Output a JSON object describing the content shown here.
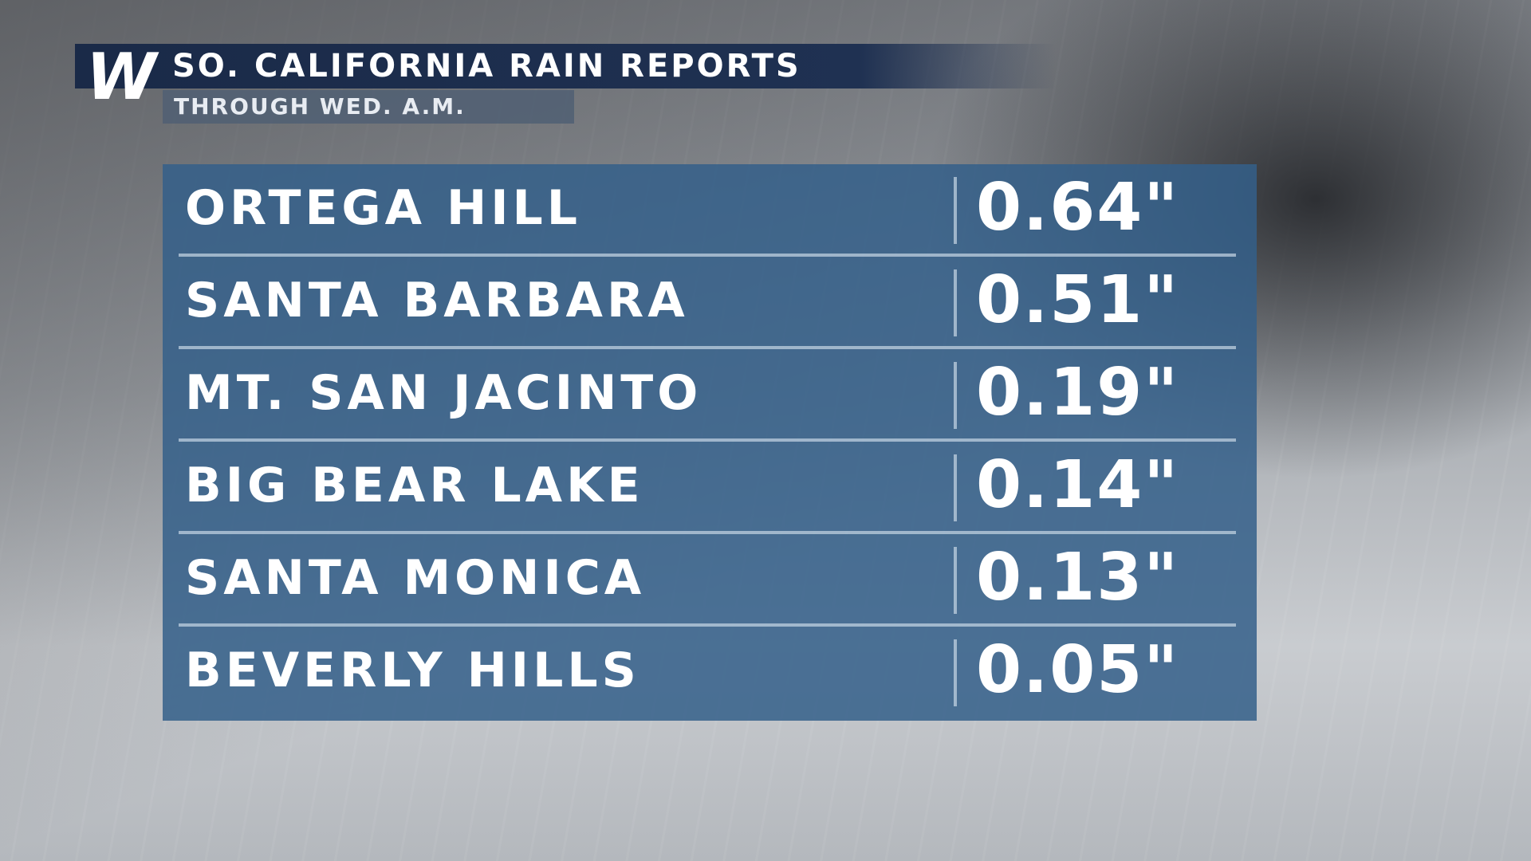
{
  "header": {
    "logo": "W",
    "title": "SO. CALIFORNIA RAIN REPORTS",
    "subtitle": "THROUGH WED. A.M."
  },
  "table": {
    "rows": [
      [
        "ORTEGA HILL",
        "0.64\""
      ],
      [
        "SANTA BARBARA",
        "0.51\""
      ],
      [
        "MT. SAN JACINTO",
        "0.19\""
      ],
      [
        "BIG BEAR LAKE",
        "0.14\""
      ],
      [
        "SANTA MONICA",
        "0.13\""
      ],
      [
        "BEVERLY HILLS",
        "0.05\""
      ]
    ]
  }
}
